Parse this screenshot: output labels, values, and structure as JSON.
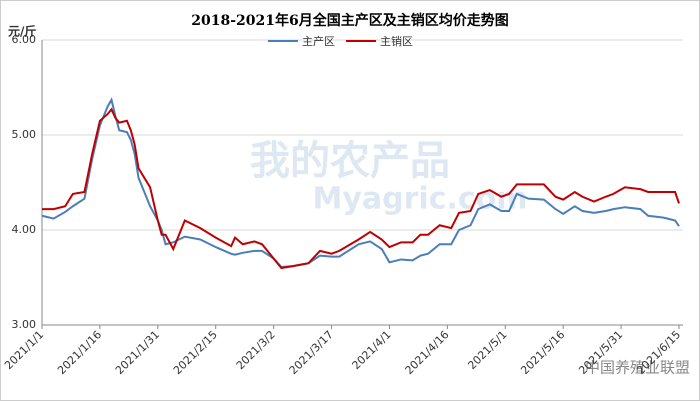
{
  "chart_data": {
    "type": "line",
    "title": "2018-2021年6月全国主产区及主销区均价走势图",
    "y_label": "元/斤",
    "watermarks": [
      "我的农产品",
      "Myagric.com",
      "中国养殖业联盟"
    ],
    "x": [
      "2021/1/1",
      "2021/1/4",
      "2021/1/7",
      "2021/1/9",
      "2021/1/12",
      "2021/1/14",
      "2021/1/16",
      "2021/1/18",
      "2021/1/19",
      "2021/1/20",
      "2021/1/21",
      "2021/1/23",
      "2021/1/24",
      "2021/1/25",
      "2021/1/26",
      "2021/1/29",
      "2021/1/31",
      "2021/2/1",
      "2021/2/2",
      "2021/2/4",
      "2021/2/7",
      "2021/2/11",
      "2021/2/15",
      "2021/2/19",
      "2021/2/20",
      "2021/2/22",
      "2021/2/25",
      "2021/2/27",
      "2021/3/2",
      "2021/3/4",
      "2021/3/7",
      "2021/3/11",
      "2021/3/14",
      "2021/3/17",
      "2021/3/19",
      "2021/3/24",
      "2021/3/27",
      "2021/3/30",
      "2021/4/1",
      "2021/4/4",
      "2021/4/7",
      "2021/4/9",
      "2021/4/11",
      "2021/4/14",
      "2021/4/17",
      "2021/4/19",
      "2021/4/22",
      "2021/4/24",
      "2021/4/27",
      "2021/4/30",
      "2021/5/2",
      "2021/5/4",
      "2021/5/7",
      "2021/5/11",
      "2021/5/14",
      "2021/5/16",
      "2021/5/19",
      "2021/5/21",
      "2021/5/24",
      "2021/5/27",
      "2021/5/29",
      "2021/6/1",
      "2021/6/5",
      "2021/6/7",
      "2021/6/11",
      "2021/6/14",
      "2021/6/15"
    ],
    "series": [
      {
        "name": "主产区",
        "color": "#4a7ebb",
        "values": [
          4.15,
          4.12,
          4.19,
          4.25,
          4.33,
          4.75,
          5.1,
          5.3,
          5.37,
          5.2,
          5.05,
          5.03,
          4.95,
          4.8,
          4.55,
          4.25,
          4.1,
          4.0,
          3.85,
          3.87,
          3.93,
          3.9,
          3.82,
          3.75,
          3.74,
          3.76,
          3.78,
          3.78,
          3.7,
          3.61,
          3.62,
          3.65,
          3.73,
          3.72,
          3.72,
          3.85,
          3.88,
          3.8,
          3.66,
          3.69,
          3.68,
          3.73,
          3.75,
          3.85,
          3.85,
          4.0,
          4.05,
          4.22,
          4.27,
          4.2,
          4.2,
          4.38,
          4.33,
          4.32,
          4.22,
          4.17,
          4.25,
          4.2,
          4.18,
          4.2,
          4.22,
          4.24,
          4.22,
          4.15,
          4.13,
          4.1,
          4.04
        ]
      },
      {
        "name": "主销区",
        "color": "#c00000",
        "values": [
          4.22,
          4.22,
          4.25,
          4.38,
          4.4,
          4.8,
          5.15,
          5.22,
          5.27,
          5.18,
          5.13,
          5.15,
          5.05,
          4.9,
          4.65,
          4.45,
          4.1,
          3.95,
          3.95,
          3.8,
          4.1,
          4.02,
          3.92,
          3.83,
          3.92,
          3.85,
          3.88,
          3.85,
          3.7,
          3.6,
          3.62,
          3.65,
          3.78,
          3.75,
          3.78,
          3.9,
          3.98,
          3.9,
          3.82,
          3.87,
          3.87,
          3.95,
          3.95,
          4.05,
          4.02,
          4.18,
          4.2,
          4.38,
          4.42,
          4.35,
          4.38,
          4.48,
          4.48,
          4.48,
          4.35,
          4.32,
          4.4,
          4.35,
          4.3,
          4.35,
          4.38,
          4.45,
          4.43,
          4.4,
          4.4,
          4.4,
          4.28
        ]
      }
    ],
    "xlim": [
      "2021/1/1",
      "2021/6/15"
    ],
    "xticks": [
      "2021/1/1",
      "2021/1/16",
      "2021/1/31",
      "2021/2/15",
      "2021/3/2",
      "2021/3/17",
      "2021/4/1",
      "2021/4/16",
      "2021/5/1",
      "2021/5/16",
      "2021/5/31",
      "2021/6/15"
    ],
    "ylim": [
      3,
      6
    ],
    "yticks": [
      {
        "value": 3,
        "label": "3.00"
      },
      {
        "value": 4,
        "label": "4.00"
      },
      {
        "value": 5,
        "label": "5.00"
      },
      {
        "value": 6,
        "label": "6.00"
      }
    ],
    "grid": true
  }
}
